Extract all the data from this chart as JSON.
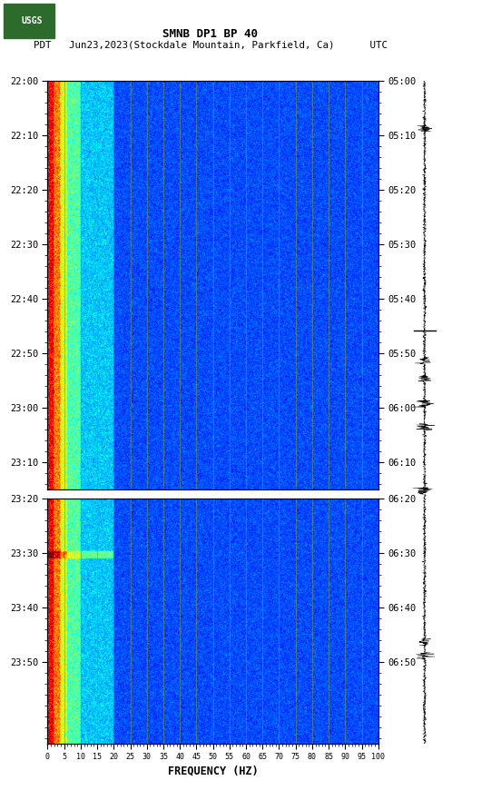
{
  "title_line1": "SMNB DP1 BP 40",
  "title_line2": "PDT   Jun23,2023(Stockdale Mountain, Parkfield, Ca)      UTC",
  "xlabel": "FREQUENCY (HZ)",
  "freq_ticks": [
    0,
    5,
    10,
    15,
    20,
    25,
    30,
    35,
    40,
    45,
    50,
    55,
    60,
    65,
    70,
    75,
    80,
    85,
    90,
    95,
    100
  ],
  "freq_min": 0,
  "freq_max": 100,
  "panel1_yticks_left": [
    "22:00",
    "22:10",
    "22:20",
    "22:30",
    "22:40",
    "22:50",
    "23:00",
    "23:10"
  ],
  "panel1_yticks_right": [
    "05:00",
    "05:10",
    "05:20",
    "05:30",
    "05:40",
    "05:50",
    "06:00",
    "06:10"
  ],
  "panel2_yticks_left": [
    "23:20",
    "23:30",
    "23:40",
    "23:50"
  ],
  "panel2_yticks_right": [
    "06:20",
    "06:30",
    "06:40",
    "06:50"
  ],
  "colormap": "jet",
  "grid_color": "#888833",
  "grid_freq_lines": [
    5,
    10,
    15,
    20,
    25,
    30,
    35,
    40,
    45,
    50,
    55,
    60,
    65,
    70,
    75,
    80,
    85,
    90,
    95
  ],
  "panel1_minutes": 75,
  "panel2_minutes": 45,
  "fig_width": 5.52,
  "fig_height": 8.92,
  "dpi": 100
}
